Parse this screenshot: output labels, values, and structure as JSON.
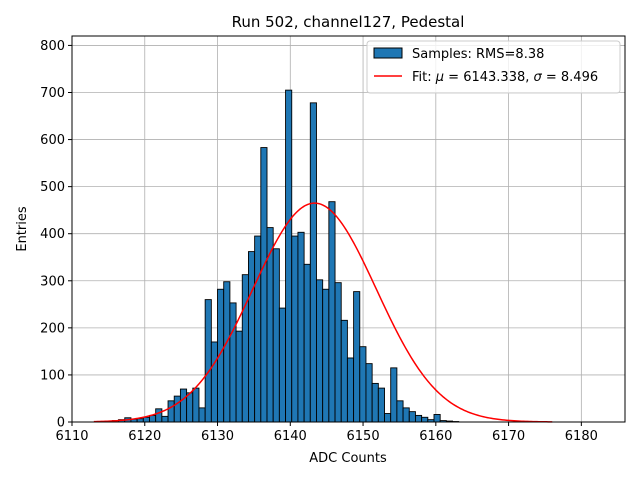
{
  "chart_data": {
    "type": "bar",
    "title": "Run 502, channel127, Pedestal",
    "xlabel": "ADC Counts",
    "ylabel": "Entries",
    "xlim": [
      6110,
      6186
    ],
    "ylim": [
      0,
      820
    ],
    "xticks": [
      6110,
      6120,
      6130,
      6140,
      6150,
      6160,
      6170,
      6180
    ],
    "yticks": [
      0,
      100,
      200,
      300,
      400,
      500,
      600,
      700,
      800
    ],
    "grid": true,
    "colors": {
      "bar": "#1f77b4",
      "edge": "#000000",
      "fit": "#ff0000"
    },
    "histogram": {
      "name": "Samples: RMS=8.38",
      "bin_start": 6113,
      "bin_width": 0.85,
      "counts": [
        0,
        1,
        2,
        3,
        5,
        9,
        6,
        7,
        10,
        14,
        28,
        12,
        45,
        55,
        70,
        62,
        72,
        30,
        260,
        170,
        282,
        298,
        253,
        193,
        313,
        362,
        395,
        583,
        413,
        368,
        242,
        705,
        395,
        403,
        335,
        678,
        302,
        282,
        468,
        296,
        216,
        136,
        277,
        160,
        124,
        82,
        72,
        18,
        115,
        45,
        30,
        22,
        14,
        10,
        5,
        16,
        3,
        2,
        1,
        0,
        0,
        0,
        0,
        0,
        0,
        0,
        0,
        0,
        0,
        0,
        0,
        0,
        0,
        0,
        0
      ]
    },
    "fit": {
      "type": "gaussian",
      "mu": 6143.338,
      "sigma": 8.496,
      "amplitude": 465,
      "x_range": [
        6113,
        6176
      ]
    },
    "legend": {
      "position": "top-right",
      "entries": [
        {
          "label": "Samples: RMS=8.38",
          "kind": "patch"
        },
        {
          "label_prefix": "Fit: ",
          "mu_symbol": "μ",
          "mu_text": " = 6143.338, ",
          "sigma_symbol": "σ",
          "sigma_text": " = 8.496",
          "kind": "line"
        }
      ]
    }
  }
}
